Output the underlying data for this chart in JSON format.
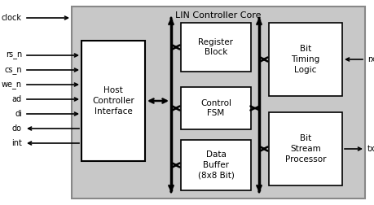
{
  "title": "LIN Controller Core",
  "fig_bg": "#ffffff",
  "outer_fill": "#c8c8c8",
  "outer_edge": "#888888",
  "box_fill": "#ffffff",
  "box_edge": "#000000",
  "figsize": [
    4.6,
    2.52
  ],
  "dpi": 100,
  "host_ctrl_label": "Host\nController\nInterface",
  "reg_block_label": "Register\nBlock",
  "ctrl_fsm_label": "Control\nFSM",
  "data_buf_label": "Data\nBuffer\n(8x8 Bit)",
  "bit_timing_label": "Bit\nTiming\nLogic",
  "bit_stream_label": "Bit\nStream\nProcessor",
  "left_signals": [
    "clock",
    "rs_n",
    "cs_n",
    "we_n",
    "ad",
    "di",
    "do",
    "int"
  ],
  "left_arrows_in": [
    false,
    false,
    false,
    false,
    false,
    false,
    true,
    true
  ],
  "right_signals": [
    "rxd",
    "txd"
  ],
  "right_arrows_in": [
    true,
    false
  ]
}
